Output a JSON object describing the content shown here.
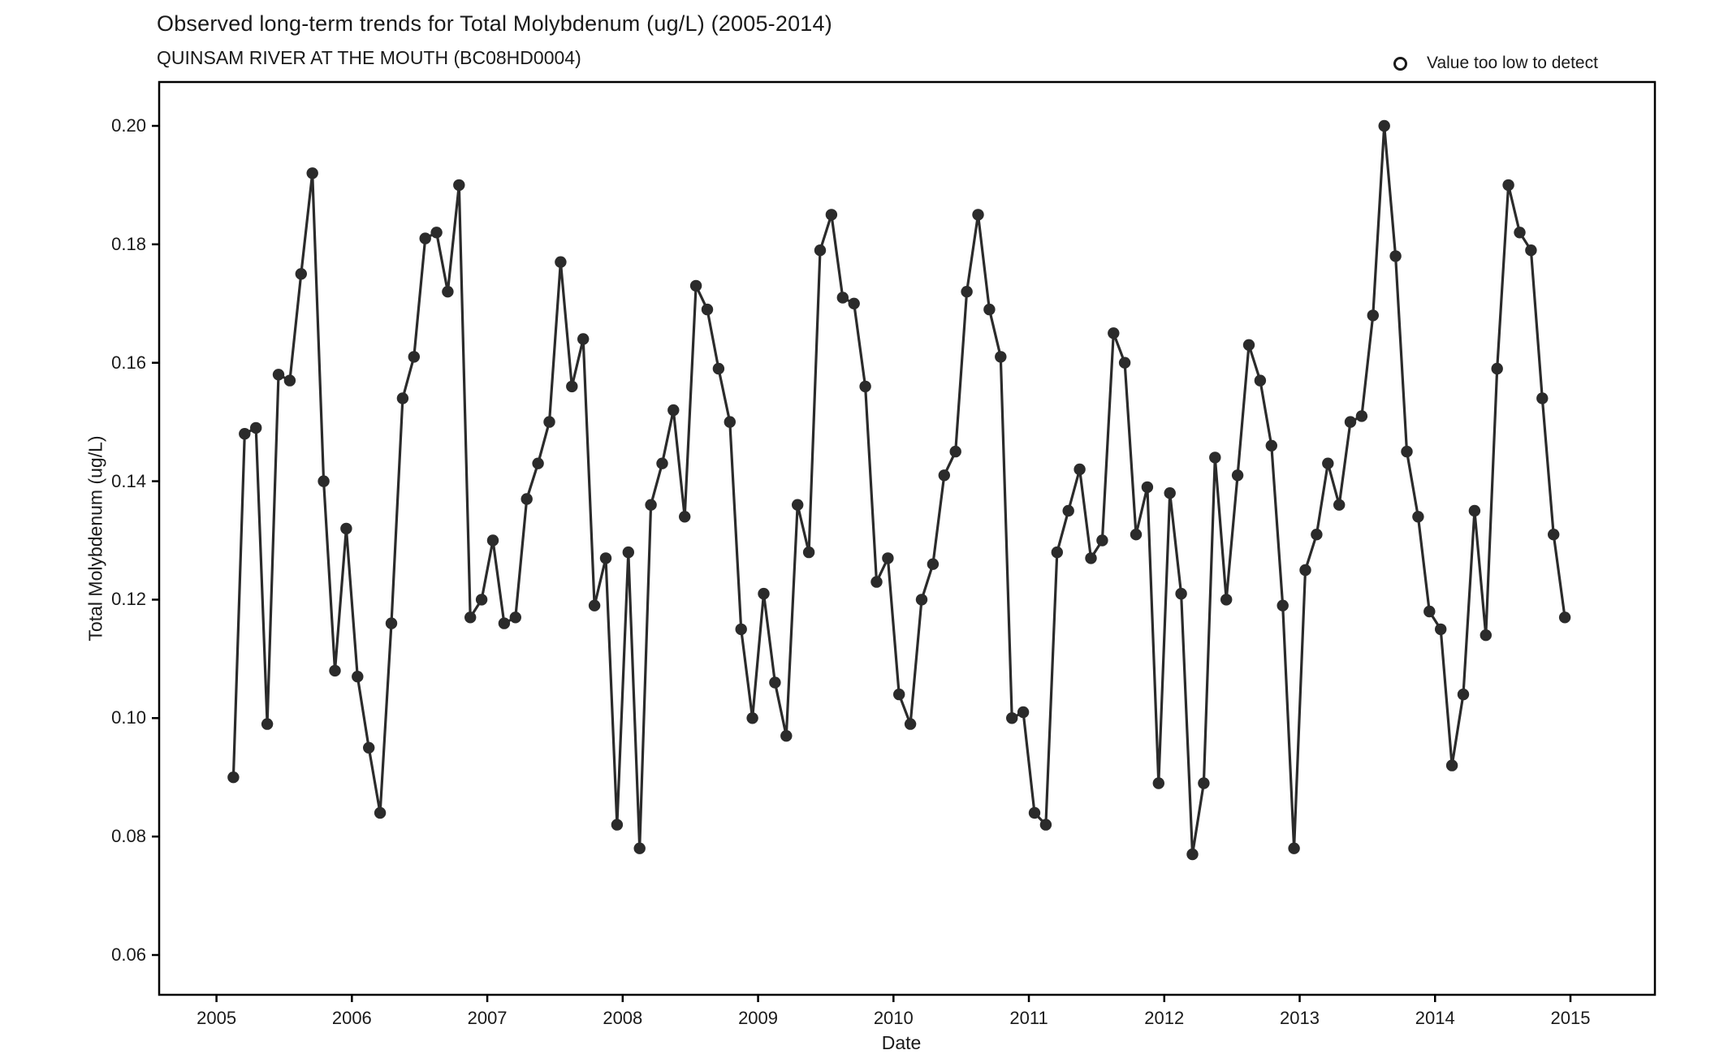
{
  "header": {
    "title": "Observed long-term trends for Total Molybdenum (ug/L) (2005-2014)",
    "subtitle": "QUINSAM RIVER AT THE MOUTH (BC08HD0004)"
  },
  "legend": {
    "label": "Value too low to detect",
    "marker": "open-circle"
  },
  "colors": {
    "series": "#2b2b2b",
    "panel_border": "#000000",
    "text": "#1a1a1a",
    "background": "#ffffff"
  },
  "chart_data": {
    "type": "line",
    "title": "Observed long-term trends for Total Molybdenum (ug/L) (2005-2014)",
    "subtitle": "QUINSAM RIVER AT THE MOUTH (BC08HD0004)",
    "xlabel": "Date",
    "ylabel": "Total Molybdenum (ug/L)",
    "legend_entries": [
      "Value too low to detect"
    ],
    "legend_position": "top-right",
    "grid": "off",
    "marker": "filled-circle",
    "ylim": [
      0.05,
      0.207
    ],
    "yticks": [
      0.06,
      0.08,
      0.1,
      0.12,
      0.14,
      0.16,
      0.18,
      0.2
    ],
    "xticks": [
      2005,
      2006,
      2007,
      2008,
      2009,
      2010,
      2011,
      2012,
      2013,
      2014,
      2015
    ],
    "x_start_month": "2005-02",
    "x_frequency": "monthly",
    "series": [
      {
        "name": "Total Molybdenum (ug/L)",
        "values": [
          0.09,
          0.148,
          0.149,
          0.099,
          0.158,
          0.157,
          0.175,
          0.192,
          0.14,
          0.108,
          0.132,
          0.107,
          0.095,
          0.084,
          0.116,
          0.154,
          0.161,
          0.181,
          0.182,
          0.172,
          0.19,
          0.117,
          0.12,
          0.13,
          0.116,
          0.117,
          0.137,
          0.143,
          0.15,
          0.177,
          0.156,
          0.164,
          0.119,
          0.127,
          0.082,
          0.128,
          0.078,
          0.136,
          0.143,
          0.152,
          0.134,
          0.173,
          0.169,
          0.159,
          0.15,
          0.115,
          0.1,
          0.121,
          0.106,
          0.097,
          0.136,
          0.128,
          0.179,
          0.185,
          0.171,
          0.17,
          0.156,
          0.123,
          0.127,
          0.104,
          0.099,
          0.12,
          0.126,
          0.141,
          0.145,
          0.172,
          0.185,
          0.169,
          0.161,
          0.1,
          0.101,
          0.084,
          0.082,
          0.128,
          0.135,
          0.142,
          0.127,
          0.13,
          0.165,
          0.16,
          0.131,
          0.139,
          0.089,
          0.138,
          0.121,
          0.077,
          0.089,
          0.144,
          0.12,
          0.141,
          0.163,
          0.157,
          0.146,
          0.119,
          0.078,
          0.125,
          0.131,
          0.143,
          0.136,
          0.15,
          0.151,
          0.168,
          0.2,
          0.178,
          0.145,
          0.134,
          0.118,
          0.115,
          0.092,
          0.104,
          0.135,
          0.114,
          0.159,
          0.19,
          0.182,
          0.179,
          0.154,
          0.131,
          0.117
        ]
      }
    ]
  }
}
